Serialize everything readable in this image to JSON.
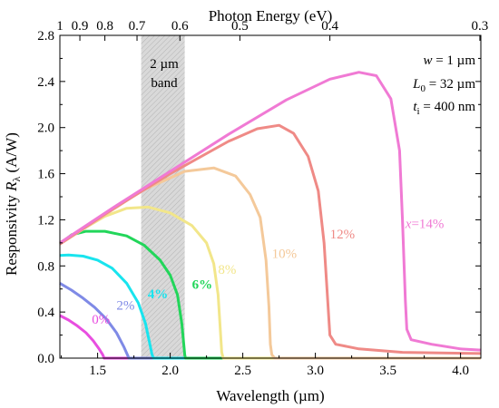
{
  "chart_data": {
    "type": "line",
    "xlabel": "Wavelength (µm)",
    "ylabel": "Responsivity Rλ (A/W)",
    "ylabel_main": "Responsivity ",
    "ylabel_sym": "R",
    "ylabel_sub": "λ",
    "ylabel_unit": " (A/W)",
    "top_label": "Photon Energy (eV)",
    "xlim": [
      1.24,
      4.14
    ],
    "ylim": [
      0.0,
      2.8
    ],
    "x_ticks": [
      "1.5",
      "2.0",
      "2.5",
      "3.0",
      "3.5",
      "4.0"
    ],
    "x_tick_values": [
      1.5,
      2.0,
      2.5,
      3.0,
      3.5,
      4.0
    ],
    "y_ticks": [
      "0.0",
      "0.4",
      "0.8",
      "1.2",
      "1.6",
      "2.0",
      "2.4",
      "2.8"
    ],
    "y_tick_values": [
      0.0,
      0.4,
      0.8,
      1.2,
      1.6,
      2.0,
      2.4,
      2.8
    ],
    "top_ticks": [
      "1",
      "0.9",
      "0.8",
      "0.7",
      "0.6",
      "0.5",
      "0.4",
      "0.3"
    ],
    "top_tick_values": [
      1.0,
      0.9,
      0.8,
      0.7,
      0.6,
      0.5,
      0.4,
      0.3
    ],
    "band": {
      "x": [
        1.8,
        2.1
      ],
      "label_line1": "2 µm",
      "label_line2": "band",
      "color": "#d9d9d9"
    },
    "params": [
      {
        "sym": "w",
        "sub": "",
        "text": " = 1 µm"
      },
      {
        "sym": "L",
        "sub": "0",
        "text": " = 32 µm"
      },
      {
        "sym": "t",
        "sub": "i",
        "text": " = 400 nm"
      }
    ],
    "series": [
      {
        "label": "0%",
        "color": "#e84ee0",
        "points": [
          [
            1.24,
            0.37
          ],
          [
            1.3,
            0.33
          ],
          [
            1.36,
            0.28
          ],
          [
            1.42,
            0.22
          ],
          [
            1.47,
            0.15
          ],
          [
            1.51,
            0.08
          ],
          [
            1.535,
            0.03
          ],
          [
            1.545,
            0.0
          ],
          [
            4.14,
            0.0
          ]
        ]
      },
      {
        "label": "2%",
        "color": "#7f8ae6",
        "points": [
          [
            1.24,
            0.65
          ],
          [
            1.32,
            0.59
          ],
          [
            1.4,
            0.52
          ],
          [
            1.48,
            0.44
          ],
          [
            1.56,
            0.34
          ],
          [
            1.63,
            0.22
          ],
          [
            1.68,
            0.1
          ],
          [
            1.705,
            0.03
          ],
          [
            1.715,
            0.0
          ],
          [
            4.14,
            0.0
          ]
        ]
      },
      {
        "label": "4%",
        "color": "#19e4ee",
        "points": [
          [
            1.24,
            0.89
          ],
          [
            1.3,
            0.895
          ],
          [
            1.4,
            0.885
          ],
          [
            1.5,
            0.85
          ],
          [
            1.6,
            0.78
          ],
          [
            1.7,
            0.65
          ],
          [
            1.78,
            0.48
          ],
          [
            1.83,
            0.3
          ],
          [
            1.86,
            0.12
          ],
          [
            1.875,
            0.03
          ],
          [
            1.885,
            0.0
          ],
          [
            4.14,
            0.0
          ]
        ]
      },
      {
        "label": "6%",
        "color": "#22d65a",
        "points": [
          [
            1.24,
            0.99
          ],
          [
            1.32,
            1.07
          ],
          [
            1.42,
            1.1
          ],
          [
            1.55,
            1.1
          ],
          [
            1.7,
            1.06
          ],
          [
            1.82,
            0.98
          ],
          [
            1.93,
            0.85
          ],
          [
            2.0,
            0.72
          ],
          [
            2.05,
            0.55
          ],
          [
            2.08,
            0.3
          ],
          [
            2.095,
            0.1
          ],
          [
            2.1,
            0.03
          ],
          [
            2.105,
            0.0
          ],
          [
            4.14,
            0.0
          ]
        ]
      },
      {
        "label": "8%",
        "color": "#f2e68a",
        "points": [
          [
            1.24,
            0.99
          ],
          [
            1.4,
            1.12
          ],
          [
            1.55,
            1.23
          ],
          [
            1.7,
            1.3
          ],
          [
            1.85,
            1.31
          ],
          [
            2.0,
            1.26
          ],
          [
            2.15,
            1.15
          ],
          [
            2.25,
            1.0
          ],
          [
            2.3,
            0.82
          ],
          [
            2.33,
            0.55
          ],
          [
            2.345,
            0.25
          ],
          [
            2.355,
            0.05
          ],
          [
            2.365,
            0.0
          ],
          [
            4.14,
            0.0
          ]
        ]
      },
      {
        "label": "10%",
        "color": "#f4c99a",
        "points": [
          [
            1.24,
            0.99
          ],
          [
            1.5,
            1.2
          ],
          [
            1.8,
            1.45
          ],
          [
            2.1,
            1.62
          ],
          [
            2.3,
            1.65
          ],
          [
            2.45,
            1.58
          ],
          [
            2.55,
            1.42
          ],
          [
            2.62,
            1.22
          ],
          [
            2.66,
            0.85
          ],
          [
            2.68,
            0.45
          ],
          [
            2.69,
            0.12
          ],
          [
            2.7,
            0.03
          ],
          [
            2.72,
            0.0
          ],
          [
            4.14,
            0.0
          ]
        ]
      },
      {
        "label": "12%",
        "color": "#ef8a86",
        "points": [
          [
            1.24,
            0.99
          ],
          [
            1.6,
            1.29
          ],
          [
            2.0,
            1.6
          ],
          [
            2.4,
            1.88
          ],
          [
            2.6,
            1.99
          ],
          [
            2.75,
            2.02
          ],
          [
            2.85,
            1.95
          ],
          [
            2.95,
            1.75
          ],
          [
            3.02,
            1.45
          ],
          [
            3.06,
            1.0
          ],
          [
            3.08,
            0.6
          ],
          [
            3.1,
            0.2
          ],
          [
            3.14,
            0.12
          ],
          [
            3.3,
            0.08
          ],
          [
            3.6,
            0.05
          ],
          [
            4.14,
            0.04
          ]
        ]
      },
      {
        "label": "x=14%",
        "label_sym": "x",
        "label_text": "=14%",
        "color": "#f07ad4",
        "points": [
          [
            1.24,
            1.0
          ],
          [
            1.6,
            1.3
          ],
          [
            2.0,
            1.62
          ],
          [
            2.4,
            1.94
          ],
          [
            2.8,
            2.24
          ],
          [
            3.1,
            2.42
          ],
          [
            3.3,
            2.48
          ],
          [
            3.42,
            2.45
          ],
          [
            3.52,
            2.25
          ],
          [
            3.58,
            1.8
          ],
          [
            3.6,
            1.2
          ],
          [
            3.62,
            0.5
          ],
          [
            3.63,
            0.25
          ],
          [
            3.66,
            0.16
          ],
          [
            3.8,
            0.12
          ],
          [
            4.0,
            0.08
          ],
          [
            4.14,
            0.07
          ]
        ]
      }
    ],
    "curve_labels": [
      {
        "text": "0%",
        "x": 1.46,
        "y": 0.3
      },
      {
        "text": "2%",
        "x": 1.63,
        "y": 0.42
      },
      {
        "text": "4%",
        "x": 1.845,
        "y": 0.52
      },
      {
        "text": "6%",
        "x": 2.15,
        "y": 0.6
      },
      {
        "text": "8%",
        "x": 2.33,
        "y": 0.73
      },
      {
        "text": "10%",
        "x": 2.7,
        "y": 0.87
      },
      {
        "text": "12%",
        "x": 3.1,
        "y": 1.04
      },
      {
        "text": "x=14%",
        "x": 3.62,
        "y": 1.13
      }
    ]
  }
}
